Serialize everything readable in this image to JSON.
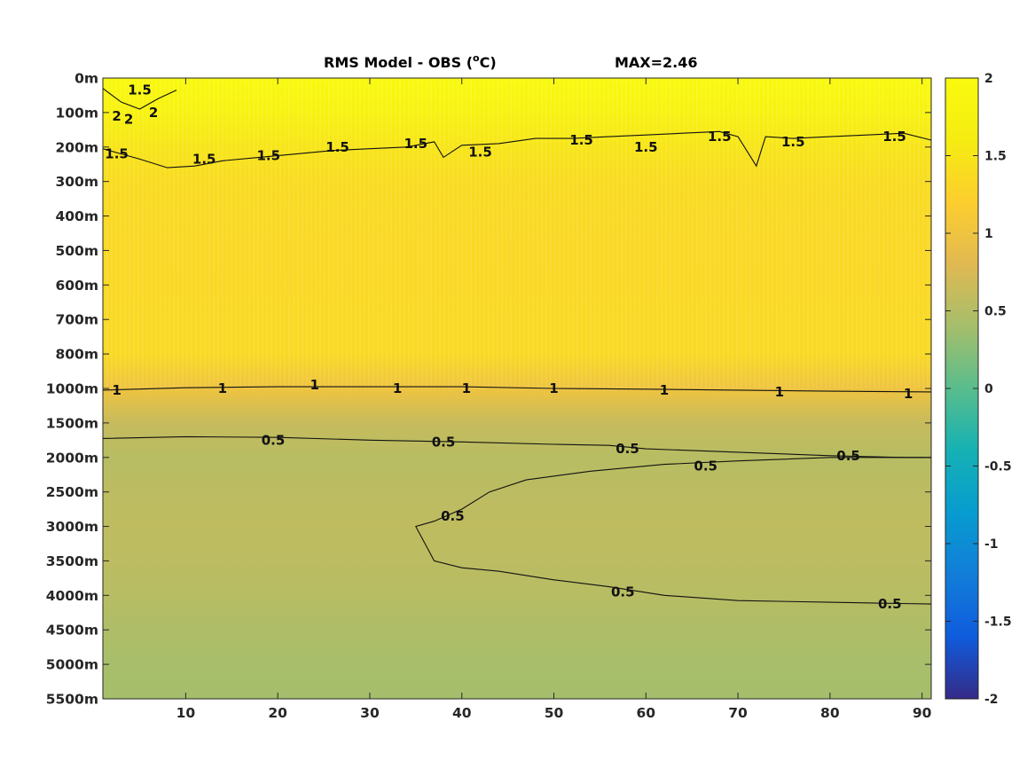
{
  "chart_data": {
    "type": "heatmap",
    "title": "RMS Model - OBS (",
    "title_sup": "o",
    "title_tail": "C)",
    "max_label": "MAX=2.46",
    "xlabel": "",
    "ylabel": "",
    "xlim": [
      1,
      91
    ],
    "x_ticks": [
      10,
      20,
      30,
      40,
      50,
      60,
      70,
      80,
      90
    ],
    "y_tick_labels": [
      "0m",
      "100m",
      "200m",
      "300m",
      "400m",
      "500m",
      "600m",
      "700m",
      "800m",
      "1000m",
      "1500m",
      "2000m",
      "2500m",
      "3000m",
      "3500m",
      "4000m",
      "4500m",
      "5000m",
      "5500m"
    ],
    "colorbar": {
      "colormap": "parula",
      "clim": [
        -2,
        2
      ],
      "ticks": [
        2,
        1.5,
        1,
        0.5,
        0,
        -0.5,
        -1,
        -1.5,
        -2
      ],
      "tick_labels": [
        "2",
        "1.5",
        "1",
        "0.5",
        "0",
        "-0.5",
        "-1",
        "-1.5",
        "-2"
      ]
    },
    "field_profile": [
      {
        "depth": "0m",
        "value": 1.95
      },
      {
        "depth": "100m",
        "value": 1.75
      },
      {
        "depth": "200m",
        "value": 1.5
      },
      {
        "depth": "300m",
        "value": 1.38
      },
      {
        "depth": "400m",
        "value": 1.35
      },
      {
        "depth": "500m",
        "value": 1.33
      },
      {
        "depth": "600m",
        "value": 1.34
      },
      {
        "depth": "700m",
        "value": 1.35
      },
      {
        "depth": "800m",
        "value": 1.35
      },
      {
        "depth": "1000m",
        "value": 1.0
      },
      {
        "depth": "1500m",
        "value": 0.62
      },
      {
        "depth": "2000m",
        "value": 0.52
      },
      {
        "depth": "2500m",
        "value": 0.55
      },
      {
        "depth": "3000m",
        "value": 0.57
      },
      {
        "depth": "3500m",
        "value": 0.55
      },
      {
        "depth": "4000m",
        "value": 0.52
      },
      {
        "depth": "4500m",
        "value": 0.46
      },
      {
        "depth": "5000m",
        "value": 0.42
      },
      {
        "depth": "5500m",
        "value": 0.4
      }
    ],
    "contour_labels": [
      {
        "text": "1.5",
        "x": 5,
        "depth_index": 0.35
      },
      {
        "text": "2",
        "x": 2.5,
        "depth_index": 1.1
      },
      {
        "text": "2",
        "x": 3.8,
        "depth_index": 1.2
      },
      {
        "text": "2",
        "x": 6.5,
        "depth_index": 1.0
      },
      {
        "text": "1.5",
        "x": 2.5,
        "depth_index": 2.2
      },
      {
        "text": "1.5",
        "x": 12,
        "depth_index": 2.35
      },
      {
        "text": "1.5",
        "x": 19,
        "depth_index": 2.25
      },
      {
        "text": "1.5",
        "x": 26.5,
        "depth_index": 2.0
      },
      {
        "text": "1.5",
        "x": 35,
        "depth_index": 1.9
      },
      {
        "text": "1.5",
        "x": 42,
        "depth_index": 2.15
      },
      {
        "text": "1.5",
        "x": 53,
        "depth_index": 1.8
      },
      {
        "text": "1.5",
        "x": 60,
        "depth_index": 2.0
      },
      {
        "text": "1.5",
        "x": 68,
        "depth_index": 1.7
      },
      {
        "text": "1.5",
        "x": 76,
        "depth_index": 1.85
      },
      {
        "text": "1.5",
        "x": 87,
        "depth_index": 1.7
      },
      {
        "text": "1",
        "x": 2.5,
        "depth_index": 9.05
      },
      {
        "text": "1",
        "x": 14,
        "depth_index": 9.0
      },
      {
        "text": "1",
        "x": 24,
        "depth_index": 8.9
      },
      {
        "text": "1",
        "x": 33,
        "depth_index": 9.0
      },
      {
        "text": "1",
        "x": 40.5,
        "depth_index": 9.0
      },
      {
        "text": "1",
        "x": 50,
        "depth_index": 9.0
      },
      {
        "text": "1",
        "x": 62,
        "depth_index": 9.05
      },
      {
        "text": "1",
        "x": 74.5,
        "depth_index": 9.1
      },
      {
        "text": "1",
        "x": 88.5,
        "depth_index": 9.15
      },
      {
        "text": "0.5",
        "x": 19.5,
        "depth_index": 10.5
      },
      {
        "text": "0.5",
        "x": 38,
        "depth_index": 10.55
      },
      {
        "text": "0.5",
        "x": 58,
        "depth_index": 10.75
      },
      {
        "text": "0.5",
        "x": 82,
        "depth_index": 10.95
      },
      {
        "text": "0.5",
        "x": 66.5,
        "depth_index": 11.25
      },
      {
        "text": "0.5",
        "x": 39,
        "depth_index": 12.7
      },
      {
        "text": "0.5",
        "x": 57.5,
        "depth_index": 14.9
      },
      {
        "text": "0.5",
        "x": 86.5,
        "depth_index": 15.25
      }
    ],
    "contours": [
      {
        "level": 1.5,
        "points": [
          [
            1,
            2.05
          ],
          [
            5,
            2.35
          ],
          [
            8,
            2.6
          ],
          [
            11,
            2.55
          ],
          [
            14,
            2.4
          ],
          [
            18,
            2.3
          ],
          [
            22,
            2.2
          ],
          [
            26,
            2.1
          ],
          [
            30,
            2.05
          ],
          [
            34,
            2.0
          ],
          [
            37,
            1.85
          ],
          [
            38,
            2.3
          ],
          [
            40,
            1.95
          ],
          [
            44,
            1.9
          ],
          [
            48,
            1.75
          ],
          [
            52,
            1.75
          ],
          [
            56,
            1.7
          ],
          [
            60,
            1.65
          ],
          [
            64,
            1.6
          ],
          [
            68,
            1.55
          ],
          [
            70,
            1.7
          ],
          [
            72,
            2.55
          ],
          [
            73,
            1.7
          ],
          [
            76,
            1.75
          ],
          [
            80,
            1.7
          ],
          [
            84,
            1.65
          ],
          [
            88,
            1.6
          ],
          [
            91,
            1.8
          ]
        ]
      },
      {
        "level": 1.0,
        "points": [
          [
            1,
            9.05
          ],
          [
            10,
            8.98
          ],
          [
            20,
            8.95
          ],
          [
            30,
            8.95
          ],
          [
            40,
            8.95
          ],
          [
            50,
            9.0
          ],
          [
            60,
            9.02
          ],
          [
            70,
            9.05
          ],
          [
            80,
            9.08
          ],
          [
            91,
            9.1
          ]
        ]
      },
      {
        "level": 0.5,
        "points": [
          [
            1,
            10.45
          ],
          [
            10,
            10.4
          ],
          [
            20,
            10.42
          ],
          [
            30,
            10.5
          ],
          [
            40,
            10.55
          ],
          [
            50,
            10.62
          ],
          [
            56,
            10.65
          ],
          [
            60,
            10.75
          ],
          [
            70,
            10.85
          ],
          [
            80,
            10.95
          ],
          [
            88,
            11.0
          ],
          [
            91,
            11.0
          ]
        ]
      },
      {
        "level": 0.5,
        "points": [
          [
            91,
            11.0
          ],
          [
            80,
            11.0
          ],
          [
            70,
            11.1
          ],
          [
            62,
            11.2
          ],
          [
            54,
            11.4
          ],
          [
            47,
            11.65
          ],
          [
            43,
            12.0
          ],
          [
            40,
            12.5
          ],
          [
            37,
            12.85
          ],
          [
            35,
            13.0
          ],
          [
            36,
            13.5
          ],
          [
            37,
            14.0
          ],
          [
            40,
            14.2
          ],
          [
            44,
            14.3
          ],
          [
            50,
            14.55
          ],
          [
            56,
            14.75
          ],
          [
            62,
            15.0
          ],
          [
            70,
            15.15
          ],
          [
            80,
            15.2
          ],
          [
            91,
            15.25
          ]
        ]
      },
      {
        "level": 2.0,
        "points": [
          [
            1,
            0.3
          ],
          [
            3,
            0.7
          ],
          [
            5,
            0.9
          ],
          [
            7,
            0.6
          ],
          [
            9,
            0.35
          ]
        ]
      }
    ]
  }
}
